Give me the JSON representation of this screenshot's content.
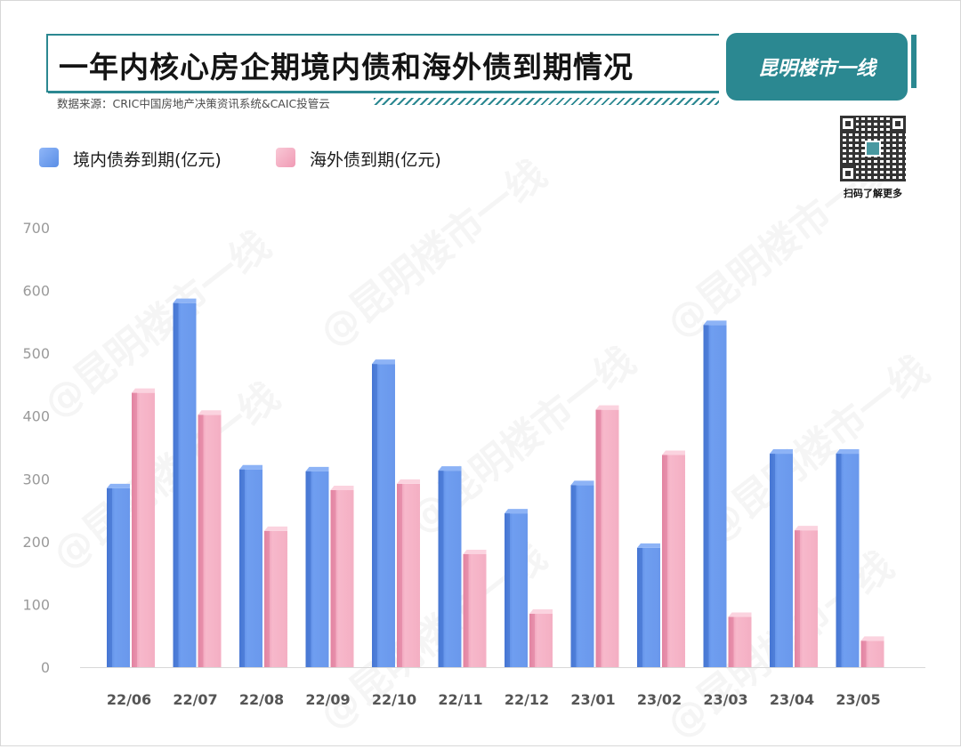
{
  "header": {
    "title": "一年内核心房企期境内债和海外债到期情况",
    "source": "数据来源：CRIC中国房地产决策资讯系统&CAIC投管云",
    "brand": "昆明楼市一线",
    "qr_caption": "扫码了解更多"
  },
  "watermark": "@昆明楼市一线",
  "colors": {
    "accent": "#2b8891",
    "domestic": "#6699ee",
    "overseas": "#f6b2c6"
  },
  "chart_data": {
    "type": "bar",
    "title": "一年内核心房企期境内债和海外债到期情况",
    "categories": [
      "22/06",
      "22/07",
      "22/08",
      "22/09",
      "22/10",
      "22/11",
      "22/12",
      "23/01",
      "23/02",
      "23/03",
      "23/04",
      "23/05"
    ],
    "series": [
      {
        "name": "境内债券到期(亿元)",
        "values": [
          285,
          580,
          315,
          312,
          483,
          313,
          245,
          290,
          190,
          545,
          340,
          340
        ]
      },
      {
        "name": "海外债到期(亿元)",
        "values": [
          437,
          402,
          217,
          282,
          292,
          180,
          85,
          410,
          338,
          80,
          218,
          42
        ]
      }
    ],
    "yticks": [
      0,
      100,
      200,
      300,
      400,
      500,
      600,
      700
    ],
    "ylim": [
      0,
      700
    ],
    "legend": "top-left",
    "grid": false
  }
}
